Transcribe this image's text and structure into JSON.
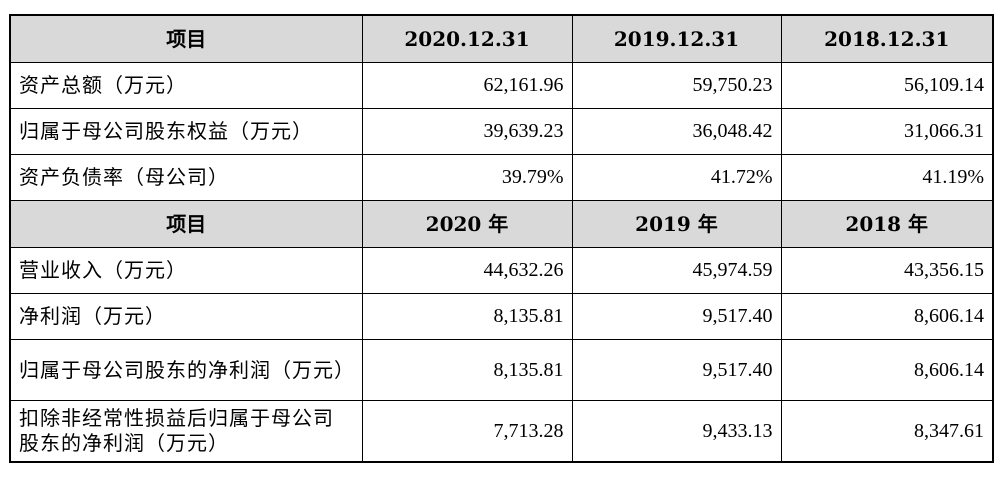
{
  "table": {
    "header1": [
      "项目",
      "2020.12.31",
      "2019.12.31",
      "2018.12.31"
    ],
    "section1_rows": [
      {
        "label": "资产总额（万元）",
        "values": [
          "62,161.96",
          "59,750.23",
          "56,109.14"
        ]
      },
      {
        "label": "归属于母公司股东权益（万元）",
        "values": [
          "39,639.23",
          "36,048.42",
          "31,066.31"
        ]
      },
      {
        "label": "资产负债率（母公司）",
        "values": [
          "39.79%",
          "41.72%",
          "41.19%"
        ]
      }
    ],
    "header2": [
      "项目",
      "2020 年",
      "2019 年",
      "2018 年"
    ],
    "section2_rows": [
      {
        "label": "营业收入（万元）",
        "values": [
          "44,632.26",
          "45,974.59",
          "43,356.15"
        ]
      },
      {
        "label": "净利润（万元）",
        "values": [
          "8,135.81",
          "9,517.40",
          "8,606.14"
        ]
      },
      {
        "label": "归属于母公司股东的净利润（万元）",
        "values": [
          "8,135.81",
          "9,517.40",
          "8,606.14"
        ]
      },
      {
        "label": "扣除非经常性损益后归属于母公司股东的净利润（万元）",
        "values": [
          "7,713.28",
          "9,433.13",
          "8,347.61"
        ]
      }
    ]
  }
}
